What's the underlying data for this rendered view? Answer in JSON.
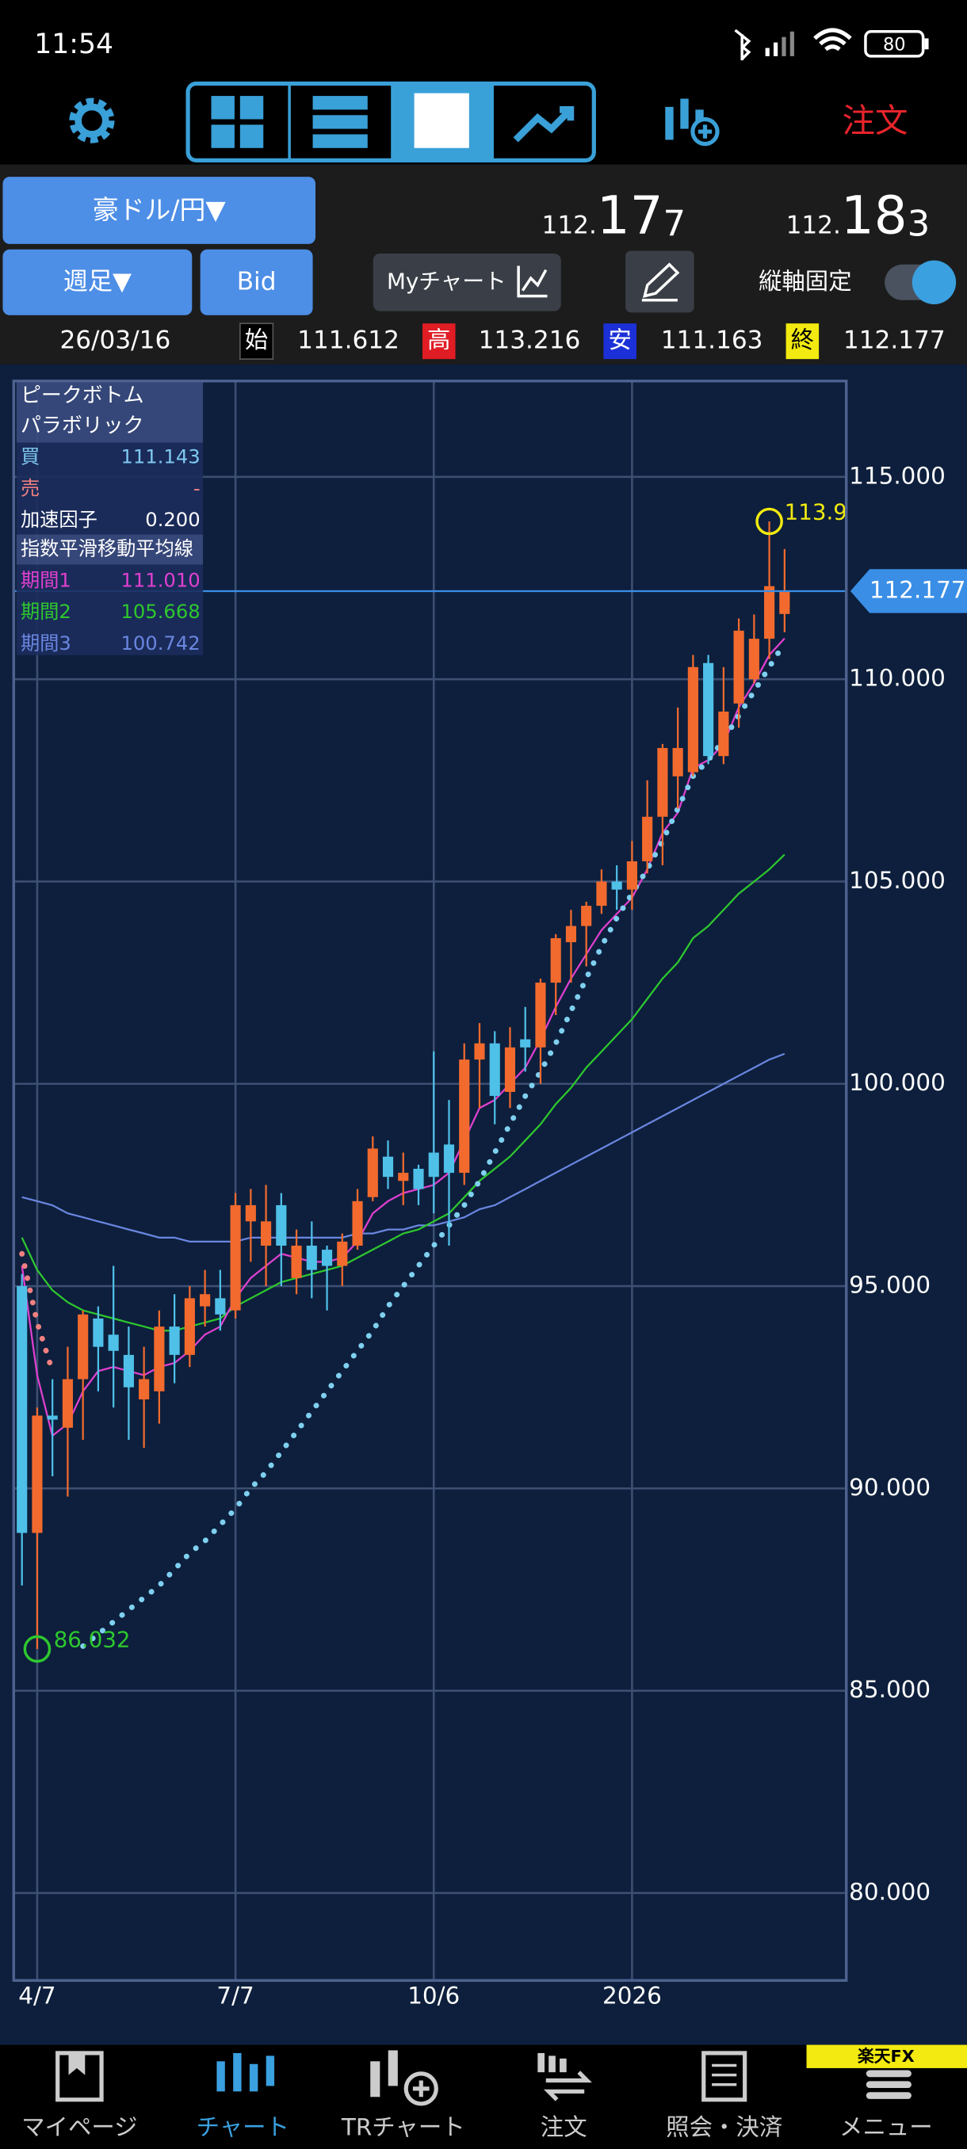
{
  "status_bar": {
    "time": "11:54",
    "battery": "80"
  },
  "toolbar": {
    "order": "注文"
  },
  "quote": {
    "pair": "豪ドル/円▼",
    "bid": {
      "head": "112.",
      "big": "17",
      "tail": "7"
    },
    "ask": {
      "head": "112.",
      "big": "18",
      "tail": "3"
    }
  },
  "controls": {
    "period": "週足▼",
    "side": "Bid",
    "my_chart": "Myチャート",
    "fix_axis": "縦軸固定"
  },
  "ohlc": {
    "date": "26/03/16",
    "open_label": "始",
    "open": "111.612",
    "high_label": "高",
    "high": "113.216",
    "low_label": "安",
    "low": "111.163",
    "close_label": "終",
    "close": "112.177"
  },
  "indicator_panel": {
    "peak_bottom": "ピークボトム",
    "buy_label": "買",
    "buy": "111.143",
    "sell_label": "売",
    "sell": "-",
    "accel_label": "加速因子",
    "accel": "0.200",
    "ema_title": "指数平滑移動平均線",
    "ema_values": [
      "111.010",
      "105.668",
      "100.742"
    ]
  },
  "chart_data": {
    "type": "candlestick",
    "categories": [
      null,
      "4/7",
      null,
      null,
      null,
      null,
      null,
      null,
      null,
      null,
      null,
      null,
      null,
      null,
      "7/7",
      null,
      null,
      null,
      null,
      null,
      null,
      null,
      null,
      null,
      null,
      null,
      null,
      "10/6",
      null,
      null,
      null,
      null,
      null,
      null,
      null,
      null,
      null,
      null,
      null,
      null,
      "2026",
      null,
      null,
      null,
      null,
      null,
      null,
      null,
      null,
      null,
      null
    ],
    "candles": [
      {
        "open": 95.0,
        "high": 95.3,
        "low": 87.6,
        "close": 88.9
      },
      {
        "open": 88.9,
        "high": 92.0,
        "low": 86.032,
        "close": 91.8
      },
      {
        "open": 91.8,
        "high": 92.7,
        "low": 90.3,
        "close": 91.7
      },
      {
        "open": 91.5,
        "high": 93.5,
        "low": 89.8,
        "close": 92.7
      },
      {
        "open": 92.7,
        "high": 94.4,
        "low": 91.2,
        "close": 94.3
      },
      {
        "open": 94.2,
        "high": 94.5,
        "low": 92.4,
        "close": 93.5
      },
      {
        "open": 93.8,
        "high": 95.5,
        "low": 92.0,
        "close": 93.4
      },
      {
        "open": 93.3,
        "high": 94.0,
        "low": 91.2,
        "close": 92.5
      },
      {
        "open": 92.2,
        "high": 93.5,
        "low": 91.0,
        "close": 92.7
      },
      {
        "open": 92.4,
        "high": 94.4,
        "low": 91.6,
        "close": 94.0
      },
      {
        "open": 94.0,
        "high": 94.8,
        "low": 92.6,
        "close": 93.3
      },
      {
        "open": 93.3,
        "high": 95.0,
        "low": 93.0,
        "close": 94.7
      },
      {
        "open": 94.5,
        "high": 95.4,
        "low": 94.0,
        "close": 94.8
      },
      {
        "open": 94.7,
        "high": 95.4,
        "low": 93.9,
        "close": 94.3
      },
      {
        "open": 94.4,
        "high": 97.3,
        "low": 94.2,
        "close": 97.0
      },
      {
        "open": 96.6,
        "high": 97.4,
        "low": 95.6,
        "close": 97.0
      },
      {
        "open": 96.0,
        "high": 97.5,
        "low": 95.0,
        "close": 96.6
      },
      {
        "open": 97.0,
        "high": 97.3,
        "low": 95.0,
        "close": 96.0
      },
      {
        "open": 95.2,
        "high": 96.4,
        "low": 94.8,
        "close": 96.0
      },
      {
        "open": 96.0,
        "high": 96.6,
        "low": 94.7,
        "close": 95.4
      },
      {
        "open": 95.9,
        "high": 96.0,
        "low": 94.4,
        "close": 95.5
      },
      {
        "open": 95.5,
        "high": 96.3,
        "low": 95.0,
        "close": 96.1
      },
      {
        "open": 96.0,
        "high": 97.4,
        "low": 95.9,
        "close": 97.1
      },
      {
        "open": 97.2,
        "high": 98.7,
        "low": 97.1,
        "close": 98.4
      },
      {
        "open": 98.2,
        "high": 98.6,
        "low": 97.4,
        "close": 97.7
      },
      {
        "open": 97.6,
        "high": 98.3,
        "low": 97.0,
        "close": 97.8
      },
      {
        "open": 97.9,
        "high": 98.0,
        "low": 97.0,
        "close": 97.4
      },
      {
        "open": 98.3,
        "high": 100.8,
        "low": 96.8,
        "close": 97.7
      },
      {
        "open": 98.5,
        "high": 99.6,
        "low": 96.0,
        "close": 97.8
      },
      {
        "open": 97.8,
        "high": 101.0,
        "low": 97.5,
        "close": 100.6
      },
      {
        "open": 100.6,
        "high": 101.5,
        "low": 99.4,
        "close": 101.0
      },
      {
        "open": 101.0,
        "high": 101.3,
        "low": 99.0,
        "close": 99.7
      },
      {
        "open": 99.8,
        "high": 101.4,
        "low": 99.4,
        "close": 100.9
      },
      {
        "open": 101.1,
        "high": 101.9,
        "low": 100.3,
        "close": 100.9
      },
      {
        "open": 100.9,
        "high": 102.6,
        "low": 100.0,
        "close": 102.5
      },
      {
        "open": 102.5,
        "high": 103.7,
        "low": 101.7,
        "close": 103.6
      },
      {
        "open": 103.5,
        "high": 104.3,
        "low": 102.5,
        "close": 103.9
      },
      {
        "open": 103.9,
        "high": 104.5,
        "low": 102.9,
        "close": 104.4
      },
      {
        "open": 104.4,
        "high": 105.3,
        "low": 104.2,
        "close": 105.0
      },
      {
        "open": 105.0,
        "high": 105.4,
        "low": 104.3,
        "close": 104.8
      },
      {
        "open": 104.8,
        "high": 106.0,
        "low": 104.3,
        "close": 105.5
      },
      {
        "open": 105.5,
        "high": 107.5,
        "low": 105.2,
        "close": 106.6
      },
      {
        "open": 106.6,
        "high": 108.4,
        "low": 105.4,
        "close": 108.3
      },
      {
        "open": 107.6,
        "high": 109.3,
        "low": 106.8,
        "close": 108.3
      },
      {
        "open": 107.7,
        "high": 110.6,
        "low": 107.6,
        "close": 110.3
      },
      {
        "open": 110.4,
        "high": 110.6,
        "low": 107.9,
        "close": 108.1
      },
      {
        "open": 108.1,
        "high": 110.3,
        "low": 107.9,
        "close": 109.2
      },
      {
        "open": 109.4,
        "high": 111.5,
        "low": 108.8,
        "close": 111.2
      },
      {
        "open": 110.0,
        "high": 111.6,
        "low": 109.9,
        "close": 111.0
      },
      {
        "open": 111.0,
        "high": 113.9,
        "low": 110.5,
        "close": 112.3
      },
      {
        "open": 111.612,
        "high": 113.216,
        "low": 111.163,
        "close": 112.177
      }
    ],
    "up_color": "#f26a2e",
    "down_color": "#4fc0e8",
    "series": [
      {
        "name": "期間1",
        "color": "#e040d0",
        "values": [
          95.5,
          92.8,
          91.3,
          91.6,
          92.4,
          92.9,
          93.0,
          92.9,
          92.8,
          93.0,
          93.1,
          93.4,
          93.8,
          94.0,
          94.7,
          95.2,
          95.5,
          95.8,
          95.7,
          95.6,
          95.6,
          95.7,
          96.1,
          96.8,
          97.1,
          97.3,
          97.4,
          97.5,
          97.8,
          98.6,
          99.4,
          99.6,
          100.0,
          100.4,
          101.1,
          101.9,
          102.6,
          103.2,
          103.8,
          104.2,
          104.6,
          105.3,
          106.2,
          106.7,
          107.8,
          108.0,
          108.4,
          109.3,
          109.9,
          110.6,
          111.01
        ]
      },
      {
        "name": "期間2",
        "color": "#2ec82e",
        "values": [
          96.2,
          95.4,
          94.9,
          94.6,
          94.4,
          94.3,
          94.2,
          94.1,
          94.0,
          93.9,
          93.9,
          94.0,
          94.1,
          94.2,
          94.5,
          94.7,
          94.9,
          95.1,
          95.2,
          95.3,
          95.4,
          95.5,
          95.7,
          95.9,
          96.1,
          96.3,
          96.4,
          96.6,
          96.8,
          97.2,
          97.6,
          97.9,
          98.2,
          98.6,
          99.0,
          99.5,
          99.9,
          100.4,
          100.8,
          101.2,
          101.6,
          102.1,
          102.6,
          103.0,
          103.6,
          103.9,
          104.3,
          104.7,
          105.0,
          105.3,
          105.668
        ]
      },
      {
        "name": "期間3",
        "color": "#6a86e0",
        "values": [
          97.2,
          97.1,
          97.0,
          96.8,
          96.7,
          96.6,
          96.5,
          96.4,
          96.3,
          96.2,
          96.2,
          96.1,
          96.1,
          96.1,
          96.1,
          96.2,
          96.2,
          96.2,
          96.2,
          96.2,
          96.2,
          96.2,
          96.3,
          96.3,
          96.4,
          96.4,
          96.5,
          96.5,
          96.6,
          96.7,
          96.9,
          97.0,
          97.2,
          97.4,
          97.6,
          97.8,
          98.0,
          98.2,
          98.4,
          98.6,
          98.8,
          99.0,
          99.2,
          99.4,
          99.6,
          99.8,
          100.0,
          100.2,
          100.4,
          100.6,
          100.742
        ]
      }
    ],
    "sar": {
      "name": "パラボリック",
      "color": "#f08080",
      "up_color": "#7fd0f0",
      "values": [
        95.8,
        94.1,
        92.9,
        null,
        86.1,
        86.4,
        86.7,
        87.0,
        87.3,
        87.6,
        88.0,
        88.4,
        88.7,
        89.1,
        89.5,
        90.0,
        90.4,
        90.9,
        91.4,
        91.9,
        92.4,
        92.9,
        93.4,
        93.9,
        94.5,
        95.0,
        95.5,
        96.0,
        96.5,
        97.0,
        97.6,
        98.3,
        99.0,
        99.7,
        100.3,
        101.0,
        101.8,
        102.6,
        103.4,
        104.1,
        104.7,
        105.3,
        106.0,
        106.8,
        107.6,
        108.0,
        108.5,
        109.1,
        109.7,
        110.3,
        110.9
      ]
    },
    "high_marker": "113.9",
    "low_marker": "86.032",
    "last_price": 112.177,
    "ylim": [
      77.84,
      117.37
    ],
    "yticks": [
      {
        "value": 80,
        "label": "80.000"
      },
      {
        "value": 85,
        "label": "85.000"
      },
      {
        "value": 90,
        "label": "90.000"
      },
      {
        "value": 95,
        "label": "95.000"
      },
      {
        "value": 100,
        "label": "100.000"
      },
      {
        "value": 105,
        "label": "105.000"
      },
      {
        "value": 110,
        "label": "110.000"
      },
      {
        "value": 115,
        "label": "115.000"
      }
    ],
    "grid": true
  },
  "nav": {
    "items": [
      "マイページ",
      "チャート",
      "TRチャート",
      "注文",
      "照会・決済",
      "メニュー"
    ],
    "badge": "楽天FX"
  }
}
